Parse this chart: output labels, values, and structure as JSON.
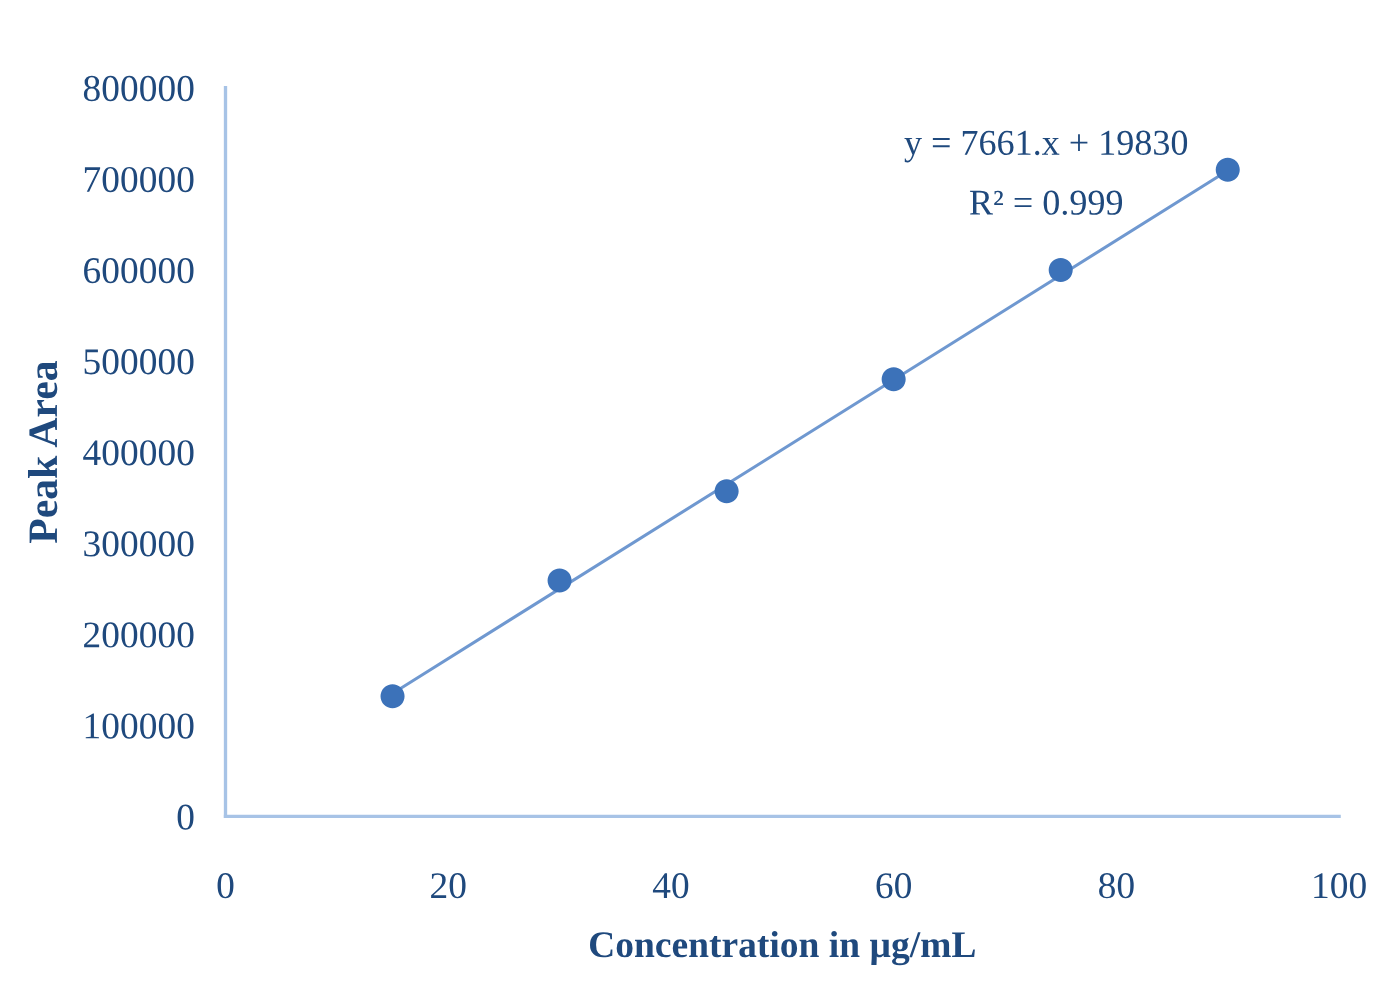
{
  "chart_data": {
    "type": "scatter",
    "xlabel": "Concentration in µg/mL",
    "ylabel": "Peak Area",
    "series": [
      {
        "color": "#3c72b9",
        "marker": "circle",
        "x": [
          15,
          30,
          45,
          60,
          75,
          90
        ],
        "values": [
          132000,
          259000,
          357000,
          480000,
          600000,
          710000
        ]
      },
      {
        "type": "line",
        "color": "#6f98d0",
        "marker": "none",
        "line_style": "solid",
        "x": [
          15,
          90
        ],
        "values": [
          135000,
          709000
        ]
      }
    ],
    "annotations": [
      "y = 7661.x + 19830",
      "R² = 0.999"
    ],
    "xlim": [
      0,
      100
    ],
    "xticks": [
      0,
      20,
      40,
      60,
      80,
      100
    ],
    "ylim": [
      0,
      800000
    ],
    "yticks": [
      0,
      100000,
      200000,
      300000,
      400000,
      500000,
      600000,
      700000,
      800000
    ],
    "grid": false
  }
}
